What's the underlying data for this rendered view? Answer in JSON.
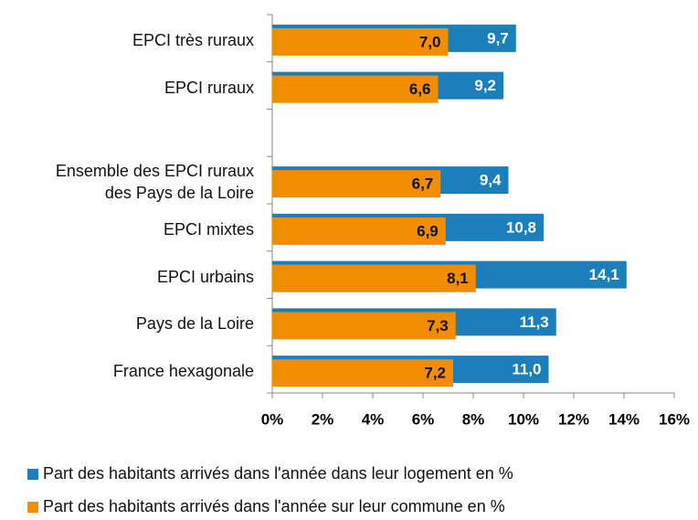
{
  "chart_data": {
    "type": "bar",
    "orientation": "horizontal",
    "overlap": true,
    "categories": [
      "EPCI très ruraux",
      "EPCI ruraux",
      null,
      "Ensemble des EPCI ruraux\ndes Pays de la Loire",
      "EPCI mixtes",
      "EPCI urbains",
      "Pays de la Loire",
      "France hexagonale"
    ],
    "series": [
      {
        "name": "Part des habitants arrivés dans l'année dans leur logement en %",
        "color": "#1b7fbc",
        "values": [
          9.7,
          9.2,
          null,
          9.4,
          10.8,
          14.1,
          11.3,
          11.0
        ],
        "value_labels": [
          "9,7",
          "9,2",
          null,
          "9,4",
          "10,8",
          "14,1",
          "11,3",
          "11,0"
        ]
      },
      {
        "name": "Part des habitants arrivés dans l'année sur leur commune en %",
        "color": "#f28c00",
        "values": [
          7.0,
          6.6,
          null,
          6.7,
          6.9,
          8.1,
          7.3,
          7.2
        ],
        "value_labels": [
          "7,0",
          "6,6",
          null,
          "6,7",
          "6,9",
          "8,1",
          "7,3",
          "7,2"
        ]
      }
    ],
    "xlim": [
      0,
      16
    ],
    "xticks": [
      {
        "value": 0,
        "label": "0%"
      },
      {
        "value": 2,
        "label": "2%"
      },
      {
        "value": 4,
        "label": "4%"
      },
      {
        "value": 6,
        "label": "6%"
      },
      {
        "value": 8,
        "label": "8%"
      },
      {
        "value": 10,
        "label": "10%"
      },
      {
        "value": 12,
        "label": "12%"
      },
      {
        "value": 14,
        "label": "14%"
      },
      {
        "value": 16,
        "label": "16%"
      }
    ],
    "legend": "bottom-left"
  }
}
